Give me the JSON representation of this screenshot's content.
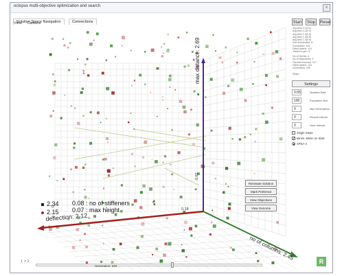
{
  "window": {
    "title": "octopus multi-objective optimization and search",
    "close_label": "x"
  },
  "tabs": [
    {
      "label": "Solution Space Navigation"
    },
    {
      "label": "Connections"
    }
  ],
  "menu": [
    {
      "label": "View"
    },
    {
      "label": "Camera"
    }
  ],
  "controls": {
    "start": "Start",
    "stop": "Stop",
    "reset": "Reset"
  },
  "stats_top": "avg.best 1.0(3.2)\navg.best 1.0(2.0)\navg.best 1.3(0.5)\navg.best 1.3(0.5)\navg.best 1.3(0.5)\nNon-Dominated: 8\nDominated: 205\nFitted added: 124\nTested in gen: 8",
  "stats_mid": "No of Genes: 4\nNo of Objectives: 3\nParents Involved: 317\nFitted added: 124\nGeneration: 340",
  "stats_reset": "Reset",
  "settings": {
    "title": "Settings",
    "fields": [
      {
        "value": "0.05",
        "label": "Mutation Rate"
      },
      {
        "value": "100",
        "label": "Population Size"
      },
      {
        "value": "0",
        "label": "Max Generations"
      },
      {
        "value": "0",
        "label": "Record Interval"
      },
      {
        "value": "0",
        "label": "Save Interval"
      }
    ],
    "single_steps": "Single Steps",
    "minimize_label": "Minim. Minim on Start",
    "algorithm": "SPEA-2"
  },
  "context_menu": [
    "Reinstate Solution",
    "Mark Preferred",
    "View Objectives",
    "View Genome"
  ],
  "axes": {
    "max_distance": "max distance: 2.69",
    "no_of_columns": "no of columns: 2.45",
    "deflection": "deflection: 2.12",
    "tick_zero": "0.18",
    "tick_y": "0.62"
  },
  "legend": {
    "v1": "2.34",
    "v2": "2.15",
    "s1": "0.08 : no of stiffeners",
    "s2": "0.07 : max height",
    "color_dark": "#1a1a1a",
    "color_red": "#b52020"
  },
  "generation": {
    "label": "Generation: 340",
    "fraction": 0.6
  },
  "axis_triad": {
    "x": "2",
    "y": "1"
  },
  "r_badge": "R",
  "colors": {
    "green": "#2f7d2a",
    "red": "#a41f1f",
    "purple": "#4b2a8f"
  }
}
